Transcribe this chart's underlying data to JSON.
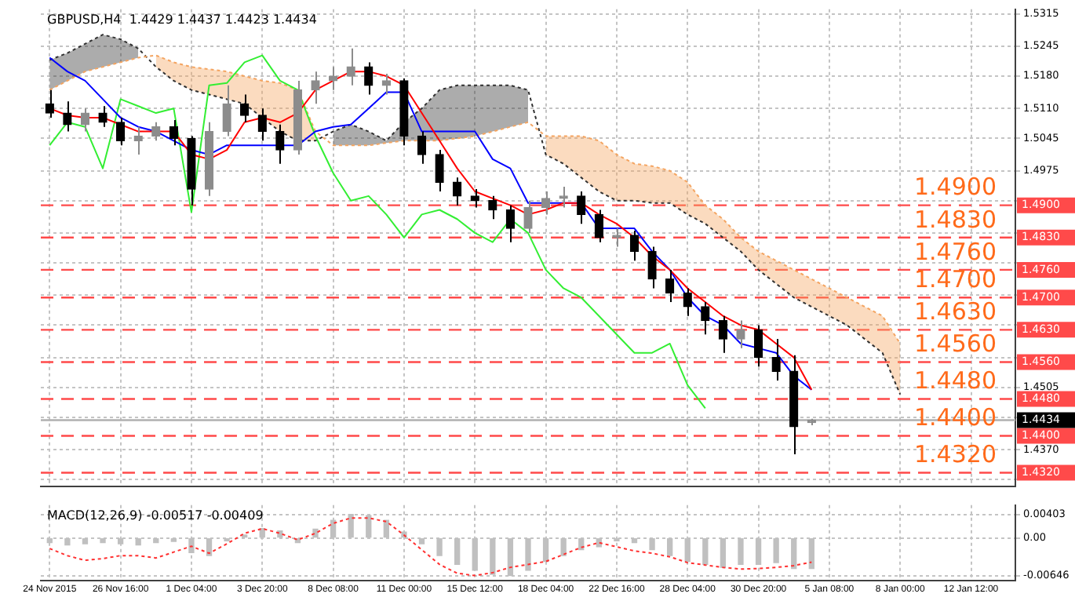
{
  "chart_data": [
    {
      "type": "candlestick",
      "title": "GBPUSD,H4  1.4429 1.4437 1.4423 1.4434",
      "categories": [
        null,
        null,
        null,
        null,
        null,
        null,
        null,
        null,
        null,
        null,
        null,
        null,
        null,
        null,
        null,
        null,
        null,
        null,
        null,
        null,
        null,
        null,
        null,
        null,
        null,
        null,
        null,
        null,
        null,
        null,
        null,
        null,
        null,
        null,
        null,
        null,
        null,
        null,
        null,
        null,
        null,
        null,
        null,
        null,
        null,
        null,
        null,
        null,
        null,
        null,
        null,
        null,
        null,
        null,
        null
      ],
      "colors": [
        "#000000",
        "#000000",
        "#8c8c8c",
        "#000000",
        "#000000",
        "#8c8c8c",
        "#8c8c8c",
        "#000000",
        "#000000",
        "#8c8c8c",
        "#8c8c8c",
        "#000000",
        "#000000",
        "#000000",
        "#8c8c8c",
        "#8c8c8c",
        "#8c8c8c",
        "#8c8c8c",
        "#000000",
        "#8c8c8c",
        "#000000",
        "#000000",
        "#000000",
        "#000000",
        "#000000",
        "#000000",
        "#000000",
        "#8c8c8c",
        "#8c8c8c",
        "#8c8c8c",
        "#000000",
        "#000000",
        "#8c8c8c",
        "#000000",
        "#000000",
        "#000000",
        "#000000",
        "#000000",
        "#000000",
        "#8c8c8c",
        "#000000",
        "#000000",
        "#000000",
        "#8c8c8c",
        null,
        null,
        null,
        null,
        null,
        null,
        null,
        null,
        null,
        null,
        null
      ],
      "ohlc": [
        [
          1.512,
          1.515,
          1.509,
          1.51
        ],
        [
          1.51,
          1.5125,
          1.506,
          1.5075
        ],
        [
          1.5075,
          1.511,
          1.506,
          1.51
        ],
        [
          1.51,
          1.5115,
          1.507,
          1.508
        ],
        [
          1.508,
          1.509,
          1.503,
          1.504
        ],
        [
          1.504,
          1.507,
          1.501,
          1.505
        ],
        [
          1.505,
          1.508,
          1.504,
          1.507
        ],
        [
          1.507,
          1.5085,
          1.503,
          1.5045
        ],
        [
          1.5045,
          1.505,
          1.49,
          1.4935
        ],
        [
          1.4935,
          1.508,
          1.492,
          1.506
        ],
        [
          1.506,
          1.516,
          1.505,
          1.512
        ],
        [
          1.512,
          1.514,
          1.508,
          1.5095
        ],
        [
          1.5095,
          1.511,
          1.504,
          1.506
        ],
        [
          1.506,
          1.5075,
          1.499,
          1.502
        ],
        [
          1.502,
          1.517,
          1.501,
          1.515
        ],
        [
          1.515,
          1.519,
          1.512,
          1.517
        ],
        [
          1.517,
          1.52,
          1.515,
          1.518
        ],
        [
          1.518,
          1.524,
          1.516,
          1.52
        ],
        [
          1.52,
          1.521,
          1.514,
          1.516
        ],
        [
          1.516,
          1.5185,
          1.514,
          1.517
        ],
        [
          1.517,
          1.5175,
          1.503,
          1.505
        ],
        [
          1.505,
          1.506,
          1.499,
          1.501
        ],
        [
          1.501,
          1.502,
          1.493,
          1.495
        ],
        [
          1.495,
          1.496,
          1.49,
          1.492
        ],
        [
          1.492,
          1.4935,
          1.4895,
          1.491
        ],
        [
          1.491,
          1.492,
          1.487,
          1.489
        ],
        [
          1.489,
          1.49,
          1.482,
          1.485
        ],
        [
          1.485,
          1.491,
          1.484,
          1.4895
        ],
        [
          1.4895,
          1.493,
          1.488,
          1.4915
        ],
        [
          1.4915,
          1.494,
          1.4895,
          1.492
        ],
        [
          1.492,
          1.493,
          1.486,
          1.488
        ],
        [
          1.488,
          1.489,
          1.482,
          1.483
        ],
        [
          1.483,
          1.485,
          1.481,
          1.4835
        ],
        [
          1.4835,
          1.4845,
          1.478,
          1.48
        ],
        [
          1.48,
          1.481,
          1.472,
          1.474
        ],
        [
          1.474,
          1.476,
          1.469,
          1.471
        ],
        [
          1.471,
          1.472,
          1.466,
          1.468
        ],
        [
          1.468,
          1.469,
          1.462,
          1.465
        ],
        [
          1.465,
          1.466,
          1.458,
          1.461
        ],
        [
          1.461,
          1.465,
          1.459,
          1.463
        ],
        [
          1.463,
          1.464,
          1.455,
          1.457
        ],
        [
          1.457,
          1.461,
          1.452,
          1.454
        ],
        [
          1.454,
          1.4575,
          1.436,
          1.442
        ],
        [
          1.4429,
          1.4437,
          1.4423,
          1.4434
        ],
        null,
        null,
        null,
        null,
        null,
        null,
        null,
        null,
        null,
        null,
        null
      ],
      "series": [
        {
          "type": "line",
          "color": "#ff0000",
          "values": [
            1.511,
            1.5095,
            1.509,
            1.509,
            1.5075,
            1.506,
            1.506,
            1.506,
            1.501,
            1.5,
            1.502,
            1.508,
            1.509,
            1.508,
            1.51,
            1.515,
            1.517,
            1.519,
            1.519,
            1.518,
            1.516,
            1.51,
            1.504,
            1.498,
            1.493,
            1.4915,
            1.49,
            1.488,
            1.489,
            1.4905,
            1.4905,
            1.488,
            1.486,
            1.483,
            1.479,
            1.476,
            1.472,
            1.469,
            1.466,
            1.464,
            1.463,
            1.46,
            1.457,
            1.45,
            null,
            null,
            null,
            null,
            null,
            null,
            null,
            null,
            null,
            null,
            null
          ]
        },
        {
          "type": "line",
          "color": "#0000ff",
          "values": [
            1.522,
            1.519,
            1.517,
            1.513,
            1.509,
            1.507,
            1.506,
            1.504,
            1.502,
            1.501,
            1.503,
            1.503,
            1.503,
            1.503,
            1.503,
            1.506,
            1.507,
            1.5075,
            1.511,
            1.5145,
            1.5145,
            1.506,
            1.506,
            1.506,
            1.506,
            1.5,
            1.498,
            1.4905,
            1.4905,
            1.4905,
            1.4905,
            1.485,
            1.485,
            1.485,
            1.48,
            1.476,
            1.47,
            1.466,
            1.464,
            1.46,
            1.459,
            1.458,
            1.453,
            1.45,
            null,
            null,
            null,
            null,
            null,
            null,
            null,
            null,
            null,
            null,
            null
          ]
        },
        {
          "type": "line",
          "color": "#33ee33",
          "values": [
            1.503,
            1.508,
            1.507,
            1.498,
            1.513,
            1.5115,
            1.51,
            1.511,
            1.4885,
            1.516,
            1.5165,
            1.521,
            1.5225,
            1.517,
            1.515,
            1.505,
            1.497,
            1.491,
            1.492,
            1.488,
            1.483,
            1.488,
            1.489,
            1.487,
            1.484,
            1.482,
            1.487,
            1.484,
            1.476,
            1.472,
            1.47,
            1.466,
            1.462,
            1.458,
            1.458,
            1.46,
            1.451,
            1.446,
            null,
            null,
            null,
            null,
            null,
            null,
            null,
            null,
            null,
            null,
            null,
            null,
            null,
            null,
            null,
            null,
            null
          ]
        },
        {
          "type": "line",
          "color": "#f4a460",
          "line_style": "dotted",
          "lower": [
            null,
            null,
            null,
            null,
            null,
            null,
            1.52,
            1.517,
            1.515,
            1.514,
            1.513,
            1.512,
            1.509,
            1.506,
            1.504,
            1.504,
            null,
            null,
            null,
            null,
            null,
            null,
            null,
            null,
            null,
            null,
            null,
            null,
            1.501,
            1.499,
            1.496,
            1.493,
            1.491,
            1.491,
            1.4905,
            1.4905,
            1.488,
            1.486,
            1.483,
            1.48,
            1.476,
            1.473,
            1.47,
            1.468,
            1.466,
            1.464,
            1.461,
            1.458,
            1.449,
            null,
            null,
            null,
            null,
            null,
            null
          ],
          "upper": [
            null,
            null,
            null,
            null,
            null,
            null,
            1.5225,
            1.521,
            1.52,
            1.5195,
            1.519,
            1.518,
            1.517,
            1.5165,
            1.515,
            1.506,
            null,
            null,
            null,
            null,
            null,
            null,
            null,
            null,
            null,
            null,
            null,
            null,
            1.505,
            1.505,
            1.505,
            1.504,
            1.501,
            1.499,
            1.4985,
            1.4975,
            1.495,
            1.49,
            1.487,
            1.483,
            1.48,
            1.478,
            1.476,
            1.474,
            1.472,
            1.47,
            1.468,
            1.466,
            1.46,
            null,
            null,
            null,
            null,
            null,
            null
          ],
          "values": [
            1.515,
            1.517,
            1.519,
            1.52,
            1.521,
            1.522,
            1.5225,
            1.521,
            1.52,
            1.5195,
            1.519,
            1.518,
            1.517,
            1.5165,
            1.515,
            1.506,
            1.503,
            1.503,
            1.503,
            1.5035,
            1.504,
            1.504,
            1.504,
            1.5045,
            1.505,
            1.506,
            1.507,
            1.508,
            1.505,
            1.505,
            1.505,
            1.504,
            1.501,
            1.499,
            1.4985,
            1.4975,
            1.495,
            1.49,
            1.487,
            1.483,
            1.48,
            1.478,
            1.476,
            1.474,
            1.472,
            1.47,
            1.468,
            1.466,
            1.46,
            null,
            null,
            null,
            null,
            null,
            null
          ]
        },
        {
          "type": "line",
          "color": "#303030",
          "line_style": "dotted",
          "lower": [
            1.515,
            1.517,
            1.519,
            1.52,
            1.521,
            1.522,
            null,
            null,
            null,
            null,
            null,
            null,
            null,
            null,
            null,
            null,
            1.503,
            1.503,
            1.503,
            1.5035,
            1.504,
            1.504,
            1.504,
            1.5045,
            1.505,
            1.506,
            1.507,
            1.508,
            null,
            null,
            null,
            null,
            null,
            null,
            null,
            null,
            null,
            null,
            null,
            null,
            null,
            null,
            null,
            null,
            null,
            null,
            null,
            null,
            null,
            null,
            null,
            null,
            null,
            null,
            null
          ],
          "upper": [
            1.5215,
            1.523,
            1.525,
            1.527,
            1.526,
            1.524,
            null,
            null,
            null,
            null,
            null,
            null,
            null,
            null,
            null,
            null,
            1.506,
            1.5075,
            1.506,
            1.504,
            1.508,
            1.511,
            1.515,
            1.516,
            1.516,
            1.516,
            1.516,
            1.515,
            null,
            null,
            null,
            null,
            null,
            null,
            null,
            null,
            null,
            null,
            null,
            null,
            null,
            null,
            null,
            null,
            null,
            null,
            null,
            null,
            null,
            null,
            null,
            null,
            null,
            null,
            null
          ],
          "values": [
            1.5215,
            1.523,
            1.525,
            1.527,
            1.526,
            1.524,
            1.52,
            1.517,
            1.515,
            1.514,
            1.513,
            1.512,
            1.509,
            1.506,
            1.504,
            1.504,
            1.506,
            1.5075,
            1.506,
            1.504,
            1.508,
            1.511,
            1.515,
            1.516,
            1.516,
            1.516,
            1.516,
            1.515,
            1.501,
            1.499,
            1.496,
            1.493,
            1.491,
            1.491,
            1.4905,
            1.4905,
            1.488,
            1.486,
            1.483,
            1.48,
            1.476,
            1.473,
            1.47,
            1.468,
            1.466,
            1.464,
            1.461,
            1.458,
            1.449,
            null,
            null,
            null,
            null,
            null,
            null
          ]
        }
      ],
      "ylim": [
        1.429,
        1.5325
      ],
      "yticks": [
        1.5315,
        1.5245,
        {
          "value": 1.518,
          "label": "1.5180"
        },
        {
          "value": 1.511,
          "label": "1.5110"
        },
        1.5045,
        1.4975,
        {
          "value": 1.491,
          "label": null
        },
        {
          "value": 1.484,
          "label": null
        },
        {
          "value": 1.4775,
          "label": null
        },
        {
          "value": 1.4705,
          "label": null
        },
        {
          "value": 1.464,
          "label": null
        },
        {
          "value": 1.457,
          "label": null
        },
        1.4505,
        {
          "value": 1.444,
          "label": null
        },
        {
          "value": 1.437,
          "label": "1.4370"
        },
        {
          "value": 1.4305,
          "label": null
        }
      ],
      "ref_lines": [
        {
          "axis": "y",
          "value": 1.49,
          "label": "1.4900",
          "color": "#ff4a4a",
          "line_style": "dashed"
        },
        {
          "axis": "y",
          "value": 1.483,
          "label": "1.4830",
          "color": "#ff4a4a",
          "line_style": "dashed"
        },
        {
          "axis": "y",
          "value": 1.476,
          "label": "1.4760",
          "color": "#ff4a4a",
          "line_style": "dashed"
        },
        {
          "axis": "y",
          "value": 1.47,
          "label": "1.4700",
          "color": "#ff4a4a",
          "line_style": "dashed"
        },
        {
          "axis": "y",
          "value": 1.463,
          "label": "1.4630",
          "color": "#ff4a4a",
          "line_style": "dashed"
        },
        {
          "axis": "y",
          "value": 1.456,
          "label": "1.4560",
          "color": "#ff4a4a",
          "line_style": "dashed"
        },
        {
          "axis": "y",
          "value": 1.448,
          "label": "1.4480",
          "color": "#ff4a4a",
          "line_style": "dashed"
        },
        {
          "axis": "y",
          "value": 1.44,
          "label": "1.4400",
          "color": "#ff4a4a",
          "line_style": "dashed"
        },
        {
          "axis": "y",
          "value": 1.432,
          "label": "1.4320",
          "color": "#ff4a4a",
          "line_style": "dashed"
        },
        {
          "axis": "y",
          "value": 1.4434,
          "label": "1.4434",
          "color": "#b0b0b0",
          "line_style": "solid"
        }
      ],
      "grid": true,
      "tick_labels": "y"
    },
    {
      "type": "bar",
      "title": "MACD(12,26,9) -0.00517 -0.00409",
      "categories": [
        "24 Nov 2015",
        null,
        null,
        null,
        "26 Nov 16:00",
        null,
        null,
        null,
        "1 Dec 04:00",
        null,
        null,
        null,
        "3 Dec 20:00",
        null,
        null,
        null,
        "8 Dec 08:00",
        null,
        null,
        null,
        "11 Dec 00:00",
        null,
        null,
        null,
        "15 Dec 12:00",
        null,
        null,
        null,
        "18 Dec 04:00",
        null,
        null,
        null,
        "22 Dec 16:00",
        null,
        null,
        null,
        "28 Dec 04:00",
        null,
        null,
        null,
        "30 Dec 20:00",
        null,
        null,
        null,
        "5 Jan 08:00",
        null,
        null,
        null,
        "8 Jan 00:00",
        null,
        null,
        null,
        "12 Jan 12:00",
        null,
        null
      ],
      "series": [
        {
          "type": "bar",
          "color": "#c0c0c0",
          "values": [
            -0.0008,
            -0.0012,
            -0.001,
            -0.0008,
            -0.001,
            -0.0012,
            -0.0008,
            -0.0006,
            -0.0025,
            -0.003,
            -0.0005,
            0.0005,
            0.0016,
            0.0012,
            -0.0008,
            0.0015,
            0.003,
            0.004,
            0.0038,
            0.003,
            0.001,
            -0.001,
            -0.003,
            -0.0045,
            -0.0055,
            -0.0062,
            -0.0064,
            -0.0055,
            -0.004,
            -0.003,
            -0.002,
            -0.0015,
            -0.0005,
            -0.0008,
            -0.002,
            -0.003,
            -0.004,
            -0.0045,
            -0.005,
            -0.0045,
            -0.0045,
            -0.0042,
            -0.0052,
            -0.0052,
            null,
            null,
            null,
            null,
            null,
            null,
            null,
            null,
            null,
            null,
            null
          ]
        },
        {
          "type": "line",
          "color": "#ff3030",
          "line_style": "dotted",
          "values": [
            -0.0018,
            -0.003,
            -0.0038,
            -0.0035,
            -0.003,
            -0.003,
            -0.0034,
            -0.0024,
            -0.0014,
            -0.0026,
            -0.001,
            0.0008,
            0.0016,
            0.0008,
            -0.0003,
            0.0008,
            0.0025,
            0.0034,
            0.0034,
            0.0028,
            0.0005,
            -0.002,
            -0.0045,
            -0.006,
            -0.0064,
            -0.0059,
            -0.005,
            -0.0045,
            -0.004,
            -0.0028,
            -0.0016,
            -0.0008,
            -0.0015,
            -0.0022,
            -0.0026,
            -0.0032,
            -0.0042,
            -0.0046,
            -0.005,
            -0.0053,
            -0.0052,
            -0.005,
            -0.0047,
            -0.0041,
            null,
            null,
            null,
            null,
            null,
            null,
            null,
            null,
            null,
            null,
            null
          ]
        }
      ],
      "ylim": [
        -0.0072,
        0.0056
      ],
      "yticks": [
        0.00403,
        {
          "value": 0,
          "label": "0.00"
        },
        -0.00646
      ],
      "grid": true
    }
  ]
}
